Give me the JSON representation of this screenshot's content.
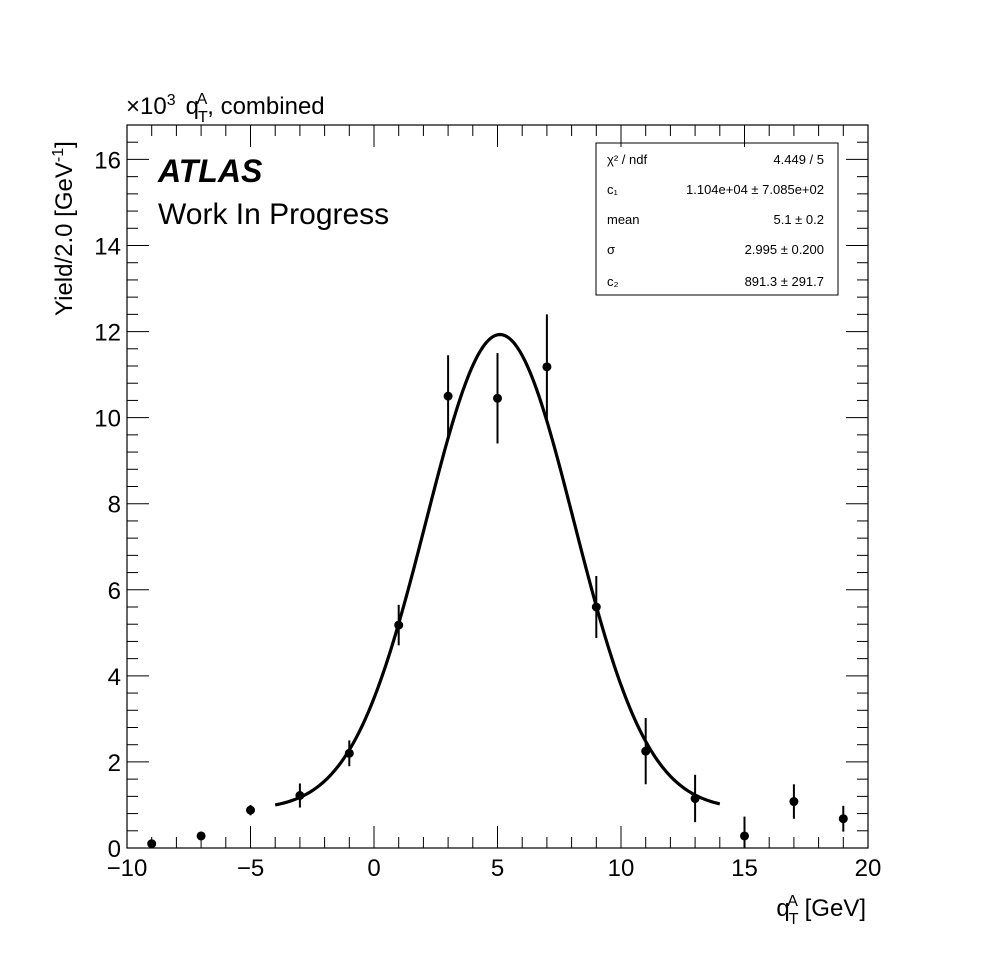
{
  "chart_data": {
    "type": "scatter",
    "title_prefix": "×10",
    "title_exponent": "3",
    "title_q": "q",
    "title_sub": "T",
    "title_sup": "A",
    "title_rest": ", combined",
    "ylabel_main": "Yield/2.0 [GeV",
    "ylabel_sup": "-1",
    "ylabel_close": "]",
    "xlabel_q": "q",
    "xlabel_sub": "T",
    "xlabel_sup": "A",
    "xlabel_rest": " [GeV]",
    "xlim": [
      -10,
      20
    ],
    "ylim": [
      0,
      16.8
    ],
    "x_ticks": [
      -10,
      -5,
      0,
      5,
      10,
      15,
      20
    ],
    "x_tick_labels": [
      "−10",
      "−5",
      "0",
      "5",
      "10",
      "15",
      "20"
    ],
    "y_ticks": [
      0,
      2,
      4,
      6,
      8,
      10,
      12,
      14,
      16
    ],
    "y_tick_labels": [
      "0",
      "2",
      "4",
      "6",
      "8",
      "10",
      "12",
      "14",
      "16"
    ],
    "grid": false,
    "atlas_label": "ATLAS",
    "atlas_sublabel": "Work In Progress",
    "series": [
      {
        "x": [
          -9,
          -7,
          -5,
          -3,
          -1,
          1,
          3,
          5,
          7,
          9,
          11,
          13,
          15,
          17,
          19
        ],
        "y": [
          0.1,
          0.28,
          0.88,
          1.22,
          2.2,
          5.18,
          10.5,
          10.45,
          11.18,
          5.6,
          2.25,
          1.15,
          0.28,
          1.08,
          0.68
        ],
        "yerr": [
          0.08,
          0.1,
          0.12,
          0.28,
          0.3,
          0.47,
          0.95,
          1.05,
          1.22,
          0.72,
          0.77,
          0.55,
          0.45,
          0.4,
          0.3
        ]
      }
    ],
    "fit": {
      "function": "gaussian_plus_constant",
      "c1": 11040,
      "mean": 5.1,
      "sigma": 2.995,
      "c2": 891.3,
      "x_range": [
        -4,
        14
      ],
      "y_scale": 1000
    },
    "stats_box": {
      "placement": "top-right",
      "rows": [
        {
          "label": "χ² / ndf",
          "value": "4.449 / 5"
        },
        {
          "label": "c₁",
          "value": "1.104e+04  ± 7.085e+02"
        },
        {
          "label": "mean",
          "value": "5.1 ± 0.2"
        },
        {
          "label": "σ",
          "value": "2.995  ± 0.200"
        },
        {
          "label": "c₂",
          "value": "891.3  ± 291.7"
        }
      ]
    }
  }
}
